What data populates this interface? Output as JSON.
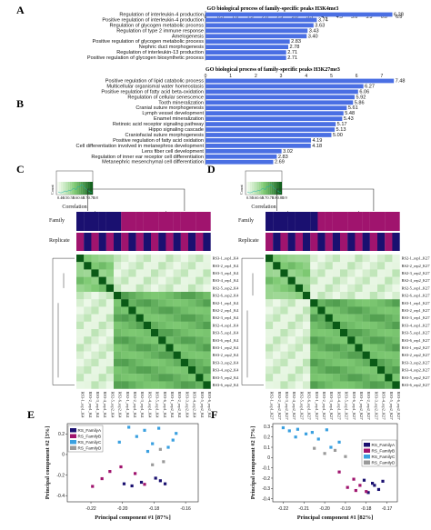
{
  "panels": {
    "a": "A",
    "b": "B",
    "c": "C",
    "d": "D",
    "e": "E",
    "f": "F"
  },
  "colors": {
    "bar": "#4a6fe3",
    "familyA": "#1a1070",
    "familyB": "#a0146e",
    "familyC": "#3aa0e0",
    "familyD": "#9a9a9a",
    "heat_high": "#f3fbef",
    "heat_mid": "#7fca74",
    "heat_low": "#0a5a16"
  },
  "chart_data": [
    {
      "type": "bar",
      "orientation": "horizontal",
      "title": "GO biological process of family-specific peaks H3K4me3",
      "categories": [
        "Regulation of interleukin-4 production",
        "Positive regulation of interleukin-4 production",
        "Regulation of glycogen metabolic process",
        "Regulation of type 2 immune response",
        "Amelogenesis",
        "Positive regulation of glycogen metabolic process",
        "Nephric duct morphogenesis",
        "Regulation of interleukin-13 production",
        "Positive regulation of glycogen biosynthetic process"
      ],
      "values": [
        6.28,
        3.74,
        3.63,
        3.43,
        3.4,
        2.83,
        2.78,
        2.71,
        2.71
      ],
      "value_labels": [
        "6.28",
        "3.74",
        "3.63",
        "3.43",
        "3.40",
        "2.83",
        "2.78",
        "2.71",
        "2.71"
      ],
      "ticks": [
        "0",
        "0.5",
        "1.0",
        "1.5",
        "2.0",
        "2.5",
        "3.0",
        "3.5",
        "4.0",
        "4.5",
        "5.0",
        "5.5",
        "6.0",
        "6.5"
      ],
      "xlim": [
        0,
        6.6
      ],
      "grid": false
    },
    {
      "type": "bar",
      "orientation": "horizontal",
      "title": "GO biological process of family-specific peaks H3K27me3",
      "categories": [
        "Positive regulation of lipid catabolic process",
        "Multicellular organismal water homeostasis",
        "Positive regulation of fatty acid beta-oxidation",
        "Regulation of cellular senescence",
        "Tooth mineralization",
        "Cranial suture morphogenesis",
        "Lymph vessel development",
        "Enamel mineralization",
        "Retinoic acid receptor signaling pathway",
        "Hippo signaling cascade",
        "Craniofacial suture morphogenesis",
        "Positive regulation of fatty acid oxidation",
        "Cell differentiation involved in metanephros development",
        "Lens fiber cell development",
        "Regulation of inner ear receptor cell differentiation",
        "Metanephric mesenchymal cell differentiation"
      ],
      "values": [
        7.48,
        6.27,
        6.06,
        5.92,
        5.86,
        5.61,
        5.48,
        5.43,
        5.17,
        5.13,
        5.0,
        4.19,
        4.18,
        3.02,
        2.83,
        2.69
      ],
      "value_labels": [
        "7.48",
        "6.27",
        "6.06",
        "5.92",
        "5.86",
        "5.61",
        "5.48",
        "5.43",
        "5.17",
        "5.13",
        "5.00",
        "4.19",
        "4.18",
        "3.02",
        "2.83",
        "2.69"
      ],
      "ticks": [
        "0",
        "1",
        "2",
        "3",
        "4",
        "5",
        "6",
        "7"
      ],
      "xlim": [
        0,
        7.8
      ],
      "grid": false
    },
    {
      "type": "heatmap",
      "title": "",
      "key_label_y": "Count",
      "key_label_x": "Correlation",
      "key_ticks": [
        "0.46",
        "0.5",
        "0.55",
        "0.6",
        "0.65",
        "0.7",
        "0.75",
        "0.8"
      ],
      "track_labels": [
        "Family",
        "Replicate"
      ],
      "family_track": [
        "A",
        "A",
        "A",
        "A",
        "A",
        "A",
        "B",
        "B",
        "B",
        "B",
        "B",
        "B",
        "B",
        "B",
        "B",
        "B",
        "B",
        "B"
      ],
      "row_labels": [
        "RS3-1_rep1_K4",
        "RS3-2_rep1_K4",
        "RS3-3_rep1_K4",
        "RS3-4_rep1_K4",
        "RS2-5_rep2_K4",
        "RS2-6_rep2_K4",
        "RS2-1_rep1_K4",
        "RS2-2_rep1_K4",
        "RS2-3_rep1_K4",
        "RS2-4_rep1_K4",
        "RS3-5_rep1_K4",
        "RS3-6_rep1_K4",
        "RS3-1_rep2_K4",
        "RS3-2_rep2_K4",
        "RS3-3_rep2_K4",
        "RS3-4_rep2_K4",
        "RS3-5_rep2_K4",
        "RS3-6_rep2_K4"
      ],
      "block_sizes": [
        5,
        13
      ]
    },
    {
      "type": "heatmap",
      "title": "",
      "key_label_y": "Count",
      "key_label_x": "Correlation",
      "key_ticks": [
        "0.55",
        "0.6",
        "0.65",
        "0.7",
        "0.75",
        "0.8",
        "0.85",
        "0.9"
      ],
      "track_labels": [
        "Family",
        "Replicate"
      ],
      "family_track": [
        "A",
        "A",
        "A",
        "A",
        "A",
        "A",
        "A",
        "B",
        "B",
        "B",
        "B",
        "B",
        "B",
        "B",
        "B",
        "B",
        "B",
        "B"
      ],
      "row_labels": [
        "RS2-1_rep1_K27",
        "RS2-2_rep2_K27",
        "RS2-3_rep2_K27",
        "RS2-4_rep2_K27",
        "RS2-5_rep1_K27",
        "RS2-6_rep1_K27",
        "RS3-1_rep1_K27",
        "RS3-2_rep1_K27",
        "RS3-3_rep1_K27",
        "RS3-4_rep1_K27",
        "RS3-5_rep1_K27",
        "RS3-6_rep1_K27",
        "RS3-1_rep2_K27",
        "RS3-2_rep2_K27",
        "RS3-3_rep2_K27",
        "RS3-4_rep2_K27",
        "RS3-5_rep2_K27",
        "RS3-6_rep2_K27"
      ],
      "block_sizes": [
        6,
        12
      ]
    },
    {
      "type": "scatter",
      "xlabel": "Principal component #1 [87%]",
      "ylabel": "Principal component #2 [3%]",
      "xlim": [
        -0.235,
        -0.152
      ],
      "ylim": [
        -0.46,
        0.3
      ],
      "xticks": [
        "-0.22",
        "-0.20",
        "-0.18",
        "-0.16"
      ],
      "yticks": [
        "0.2",
        "0",
        "-0.2",
        "-0.4"
      ],
      "legend": [
        "RS_FamilyA",
        "RS_FamilyB",
        "RS_FamilyC",
        "RS_FamilyD"
      ],
      "legend_position": "top-left",
      "series": [
        {
          "name": "RS_FamilyA",
          "color": "#1a1070",
          "x": [
            -0.199,
            -0.194,
            -0.176,
            -0.173,
            -0.188,
            -0.179
          ],
          "y": [
            -0.285,
            -0.305,
            -0.255,
            -0.285,
            -0.27,
            -0.23
          ]
        },
        {
          "name": "RS_FamilyB",
          "color": "#a0146e",
          "x": [
            -0.213,
            -0.208,
            -0.192,
            -0.186,
            -0.201,
            -0.219
          ],
          "y": [
            -0.235,
            -0.165,
            -0.185,
            -0.29,
            -0.12,
            -0.31
          ]
        },
        {
          "name": "RS_FamilyC",
          "color": "#3aa0e0",
          "x": [
            -0.196,
            -0.191,
            -0.186,
            -0.181,
            -0.177,
            -0.171,
            -0.166,
            -0.202,
            -0.184,
            -0.168
          ],
          "y": [
            0.265,
            0.175,
            0.235,
            0.105,
            0.255,
            0.07,
            0.205,
            0.12,
            0.03,
            0.14
          ]
        },
        {
          "name": "RS_FamilyD",
          "color": "#9a9a9a",
          "x": [
            -0.176,
            -0.174,
            -0.181
          ],
          "y": [
            0.05,
            -0.07,
            -0.1
          ]
        }
      ]
    },
    {
      "type": "scatter",
      "xlabel": "Principal component #1 [82%]",
      "ylabel": "Principal component #2 [7%]",
      "xlim": [
        -0.225,
        -0.165
      ],
      "ylim": [
        -0.43,
        0.33
      ],
      "xticks": [
        "-0.22",
        "-0.21",
        "-0.20",
        "-0.19",
        "-0.18",
        "-0.17"
      ],
      "yticks": [
        "0.3",
        "0.2",
        "0.1",
        "0",
        "-0.1",
        "-0.2",
        "-0.3",
        "-0.4"
      ],
      "legend": [
        "RS_FamilyA",
        "RS_FamilyB",
        "RS_FamilyC",
        "RS_FamilyD"
      ],
      "legend_position": "top-right",
      "series": [
        {
          "name": "RS_FamilyA",
          "color": "#1a1070",
          "x": [
            -0.181,
            -0.177,
            -0.174,
            -0.179,
            -0.172,
            -0.176
          ],
          "y": [
            -0.22,
            -0.25,
            -0.31,
            -0.34,
            -0.23,
            -0.27
          ]
        },
        {
          "name": "RS_FamilyB",
          "color": "#a0146e",
          "x": [
            -0.193,
            -0.186,
            -0.183,
            -0.189,
            -0.18,
            -0.185
          ],
          "y": [
            -0.14,
            -0.21,
            -0.27,
            -0.29,
            -0.33,
            -0.32
          ]
        },
        {
          "name": "RS_FamilyC",
          "color": "#3aa0e0",
          "x": [
            -0.22,
            -0.217,
            -0.213,
            -0.209,
            -0.206,
            -0.203,
            -0.199,
            -0.214,
            -0.197,
            -0.193
          ],
          "y": [
            0.29,
            0.26,
            0.275,
            0.23,
            0.245,
            0.18,
            0.27,
            0.2,
            0.1,
            0.15
          ]
        },
        {
          "name": "RS_FamilyD",
          "color": "#9a9a9a",
          "x": [
            -0.205,
            -0.2,
            -0.195,
            -0.19
          ],
          "y": [
            0.09,
            0.04,
            0.07,
            0.01
          ]
        }
      ]
    }
  ]
}
